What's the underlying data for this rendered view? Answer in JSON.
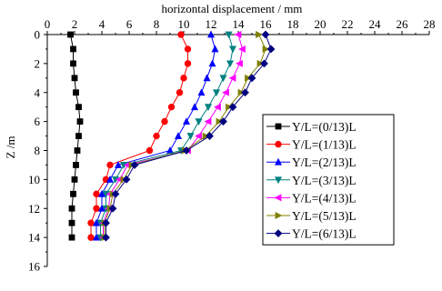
{
  "chart_data": {
    "type": "line",
    "title": "",
    "xlabel": "horizontal displacement / mm",
    "ylabel": "Z /m",
    "xlim": [
      0,
      28
    ],
    "ylim": [
      0,
      16
    ],
    "y_inverted": true,
    "x_axis_position": "top",
    "xticks": [
      "0",
      "2",
      "4",
      "6",
      "8",
      "10",
      "12",
      "14",
      "16",
      "18",
      "20",
      "22",
      "24",
      "26",
      "28"
    ],
    "yticks": [
      "0",
      "2",
      "4",
      "6",
      "8",
      "10",
      "12",
      "14",
      "16"
    ],
    "grid": false,
    "legend_position": "right",
    "depths": [
      0,
      1,
      2,
      3,
      4,
      5,
      6,
      7,
      8,
      9,
      10,
      11,
      12,
      13,
      14
    ],
    "series": [
      {
        "name": "Y/L=(0/13)L",
        "color": "#000000",
        "marker": "square",
        "values": [
          1.7,
          1.9,
          1.9,
          2.0,
          2.1,
          2.3,
          2.4,
          2.3,
          2.2,
          2.1,
          2.0,
          1.9,
          1.8,
          1.8,
          1.8
        ]
      },
      {
        "name": "Y/L=(1/13)L",
        "color": "#ff0000",
        "marker": "circle",
        "values": [
          9.8,
          10.3,
          10.3,
          10.0,
          9.7,
          9.1,
          8.6,
          8.0,
          7.5,
          4.6,
          4.3,
          3.6,
          3.6,
          3.2,
          3.2
        ]
      },
      {
        "name": "Y/L=(2/13)L",
        "color": "#0000ff",
        "marker": "triangle-up",
        "values": [
          12.0,
          12.3,
          12.1,
          11.7,
          11.3,
          10.8,
          10.2,
          9.6,
          9.0,
          5.2,
          4.6,
          4.0,
          4.0,
          3.6,
          3.6
        ]
      },
      {
        "name": "Y/L=(3/13)L",
        "color": "#008080",
        "marker": "triangle-down",
        "values": [
          13.3,
          13.6,
          13.4,
          12.9,
          12.4,
          11.8,
          11.1,
          10.5,
          9.8,
          5.6,
          5.0,
          4.3,
          4.3,
          3.9,
          3.9
        ]
      },
      {
        "name": "Y/L=(4/13)L",
        "color": "#ff00ff",
        "marker": "triangle-left",
        "values": [
          14.0,
          14.3,
          14.1,
          13.6,
          13.1,
          12.5,
          11.8,
          11.1,
          10.3,
          5.9,
          5.3,
          4.6,
          4.5,
          4.1,
          4.1
        ]
      },
      {
        "name": "Y/L=(5/13)L",
        "color": "#808000",
        "marker": "triangle-right",
        "values": [
          15.5,
          16.0,
          15.6,
          14.7,
          14.2,
          13.3,
          12.6,
          11.6,
          10.1,
          6.2,
          5.6,
          4.8,
          4.6,
          4.2,
          4.2
        ]
      },
      {
        "name": "Y/L=(6/13)L",
        "color": "#000080",
        "marker": "diamond",
        "values": [
          16.0,
          16.4,
          15.9,
          15.0,
          14.5,
          13.6,
          12.9,
          11.9,
          10.2,
          6.4,
          5.8,
          5.0,
          4.8,
          4.3,
          4.3
        ]
      }
    ]
  }
}
